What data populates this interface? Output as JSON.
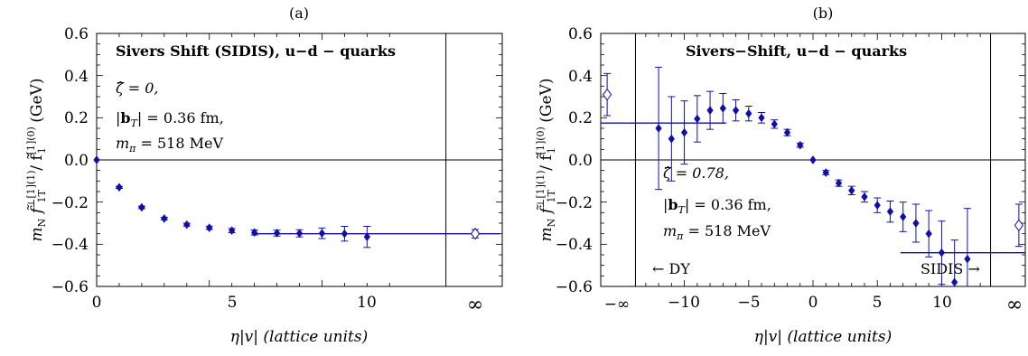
{
  "chart_data": [
    {
      "type": "scatter",
      "panel_label": "(a)",
      "title": "Sivers Shift (SIDIS), u−d − quarks",
      "xlabel": "η|v|  (lattice units)",
      "ylabel": "m_N f̃⊥[1](1)_1T / f̃[1](0)_1  (GeV)",
      "ylabel_parts": {
        "pre": "m",
        "sub": "N",
        "mid": " f̃",
        "sup1": "⊥[1](1)",
        "sub2": "1T",
        "slash": " / f̃",
        "sup3": "[1](0)",
        "sub3": "1",
        "unit": " (GeV)"
      },
      "xlim": [
        0,
        18
      ],
      "ylim": [
        -0.6,
        0.6
      ],
      "x_ticks": [
        0,
        5,
        10,
        "∞"
      ],
      "y_ticks": [
        "0.6",
        "0.4",
        "0.2",
        "0.0",
        "−0.2",
        "−0.4",
        "−0.6"
      ],
      "annotations": [
        "ζ̂ = 0,",
        "|b_T| = 0.36 fm,",
        "m_π = 518 MeV"
      ],
      "annotation_parts": {
        "zeta": "ζ̂ = 0,",
        "bt_pre": "|",
        "bt_b": "b",
        "bt_sub": "T",
        "bt_post": "| = 0.36 fm,",
        "m_pre": "m",
        "m_sub": "π",
        "m_post": " = 518 MeV"
      },
      "series": [
        {
          "marker": "filled-diamond",
          "points": [
            {
              "x": 0,
              "y": 0.0,
              "err": 0.0
            },
            {
              "x": 1,
              "y": -0.13,
              "err": 0.005
            },
            {
              "x": 2,
              "y": -0.225,
              "err": 0.006
            },
            {
              "x": 3,
              "y": -0.278,
              "err": 0.006
            },
            {
              "x": 4,
              "y": -0.307,
              "err": 0.007
            },
            {
              "x": 5,
              "y": -0.322,
              "err": 0.008
            },
            {
              "x": 6,
              "y": -0.335,
              "err": 0.01
            },
            {
              "x": 7,
              "y": -0.344,
              "err": 0.012
            },
            {
              "x": 8,
              "y": -0.347,
              "err": 0.014
            },
            {
              "x": 9,
              "y": -0.348,
              "err": 0.017
            },
            {
              "x": 10,
              "y": -0.348,
              "err": 0.025
            },
            {
              "x": 11,
              "y": -0.35,
              "err": 0.035
            },
            {
              "x": 12,
              "y": -0.365,
              "err": 0.05
            }
          ]
        },
        {
          "marker": "open-diamond",
          "points": [
            {
              "x": 16.8,
              "y": -0.35,
              "err": 0.02
            }
          ]
        }
      ],
      "fit_lines": [
        {
          "x": [
            6.9,
            17.9
          ],
          "y": -0.35
        }
      ],
      "vertical_lines": [
        15.5
      ],
      "horizontal_lines": [
        0
      ]
    },
    {
      "type": "scatter",
      "panel_label": "(b)",
      "title": "Sivers−Shift, u−d − quarks",
      "xlabel": "η|v|  (lattice units)",
      "ylabel": "m_N f̃⊥[1](1)_1T / f̃[1](0)_1  (GeV)",
      "ylabel_parts": {
        "pre": "m",
        "sub": "N",
        "mid": " f̃",
        "sup1": "⊥[1](1)",
        "sub2": "1T",
        "slash": " / f̃",
        "sup3": "[1](0)",
        "sub3": "1",
        "unit": " (GeV)"
      },
      "xlim": [
        -16.5,
        16.5
      ],
      "ylim": [
        -0.6,
        0.6
      ],
      "x_ticks": [
        "−∞",
        "−10",
        "−5",
        "0",
        "5",
        "10",
        "∞"
      ],
      "y_ticks": [
        "0.6",
        "0.4",
        "0.2",
        "0.0",
        "−0.2",
        "−0.4",
        "−0.6"
      ],
      "annotations": [
        "ζ̂ = 0.78,",
        "|b_T| = 0.36 fm,",
        "m_π = 518 MeV",
        "← DY",
        "SIDIS →"
      ],
      "annotation_parts": {
        "zeta": "ζ̂ = 0.78,",
        "bt_pre": "|",
        "bt_b": "b",
        "bt_sub": "T",
        "bt_post": "| = 0.36 fm,",
        "m_pre": "m",
        "m_sub": "π",
        "m_post": " = 518 MeV",
        "dy": "← DY",
        "sidis": "SIDIS →"
      },
      "series": [
        {
          "marker": "filled-diamond",
          "points": [
            {
              "x": -12,
              "y": 0.15,
              "err": 0.29
            },
            {
              "x": -11,
              "y": 0.1,
              "err": 0.2
            },
            {
              "x": -10,
              "y": 0.13,
              "err": 0.15
            },
            {
              "x": -9,
              "y": 0.195,
              "err": 0.11
            },
            {
              "x": -8,
              "y": 0.235,
              "err": 0.09
            },
            {
              "x": -7,
              "y": 0.245,
              "err": 0.07
            },
            {
              "x": -6,
              "y": 0.235,
              "err": 0.05
            },
            {
              "x": -5,
              "y": 0.22,
              "err": 0.035
            },
            {
              "x": -4,
              "y": 0.2,
              "err": 0.025
            },
            {
              "x": -3,
              "y": 0.17,
              "err": 0.02
            },
            {
              "x": -2,
              "y": 0.13,
              "err": 0.015
            },
            {
              "x": -1,
              "y": 0.07,
              "err": 0.01
            },
            {
              "x": 0,
              "y": 0.0,
              "err": 0.0
            },
            {
              "x": 1,
              "y": -0.06,
              "err": 0.01
            },
            {
              "x": 2,
              "y": -0.11,
              "err": 0.015
            },
            {
              "x": 3,
              "y": -0.145,
              "err": 0.02
            },
            {
              "x": 4,
              "y": -0.175,
              "err": 0.025
            },
            {
              "x": 5,
              "y": -0.215,
              "err": 0.035
            },
            {
              "x": 6,
              "y": -0.245,
              "err": 0.05
            },
            {
              "x": 7,
              "y": -0.27,
              "err": 0.07
            },
            {
              "x": 8,
              "y": -0.3,
              "err": 0.09
            },
            {
              "x": 9,
              "y": -0.35,
              "err": 0.11
            },
            {
              "x": 10,
              "y": -0.44,
              "err": 0.15
            },
            {
              "x": 11,
              "y": -0.58,
              "err": 0.2
            },
            {
              "x": 12,
              "y": -0.47,
              "err": 0.24
            }
          ]
        },
        {
          "marker": "open-diamond",
          "points": [
            {
              "x": -16,
              "y": 0.31,
              "err": 0.1
            },
            {
              "x": 16,
              "y": -0.31,
              "err": 0.1
            }
          ]
        }
      ],
      "fit_lines": [
        {
          "x": [
            -16.5,
            -6.8
          ],
          "y": 0.175
        },
        {
          "x": [
            6.8,
            16.5
          ],
          "y": -0.44
        }
      ],
      "vertical_lines": [
        -13.8,
        13.8
      ],
      "horizontal_lines": [
        0
      ]
    }
  ]
}
